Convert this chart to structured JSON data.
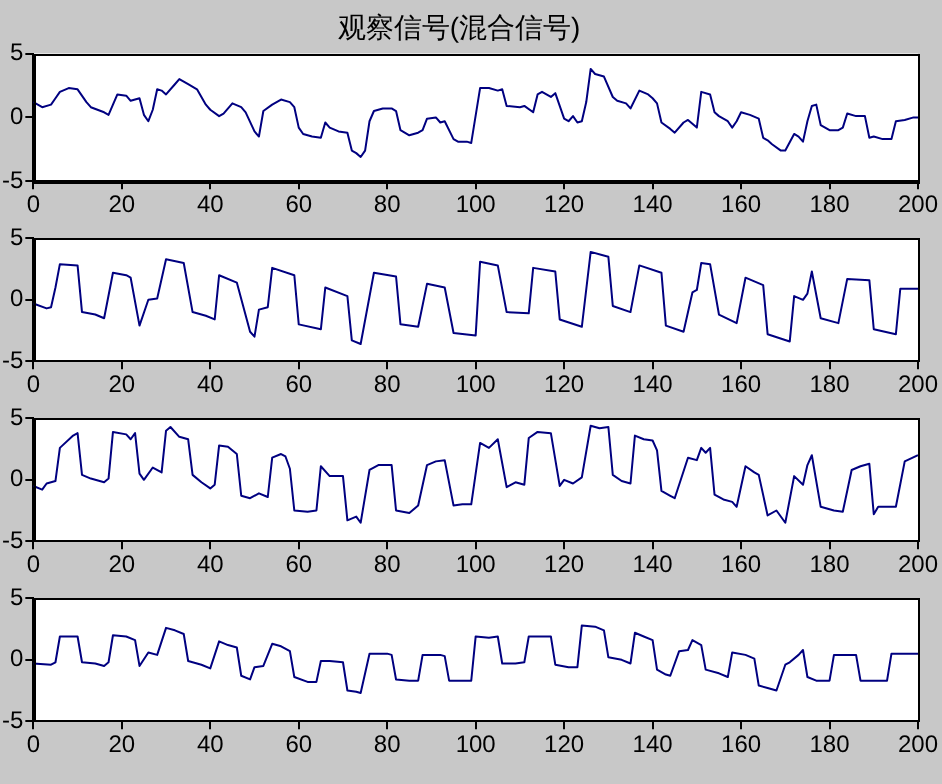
{
  "chart_data": [
    {
      "type": "line",
      "title": "观察信号(混合信号)",
      "color": "#000080",
      "xlim": [
        0,
        200
      ],
      "xticks": [
        0,
        20,
        40,
        60,
        80,
        100,
        120,
        140,
        160,
        180,
        200
      ],
      "ylim": [
        -5,
        5
      ],
      "yticks": [
        -5,
        0,
        5
      ],
      "grid": false,
      "x": [
        0,
        2,
        4,
        5,
        6,
        8,
        10,
        12,
        13,
        16,
        17,
        18,
        19,
        21,
        22,
        24,
        25,
        26,
        27,
        28,
        29,
        30,
        32,
        33,
        35,
        37,
        39,
        40,
        42,
        43,
        45,
        47,
        48,
        50,
        51,
        52,
        54,
        56,
        58,
        59,
        60,
        61,
        63,
        65,
        66,
        67,
        69,
        71,
        72,
        73,
        74,
        75,
        76,
        77,
        79,
        81,
        82,
        83,
        85,
        87,
        88,
        89,
        91,
        92,
        93,
        95,
        96,
        98,
        99,
        101,
        103,
        105,
        106,
        107,
        110,
        111,
        113,
        114,
        115,
        116,
        117,
        118,
        120,
        121,
        122,
        123,
        124,
        125,
        126,
        127,
        129,
        131,
        132,
        134,
        135,
        137,
        139,
        140,
        141,
        142,
        144,
        145,
        147,
        148,
        150,
        151,
        153,
        154,
        155,
        157,
        158,
        159,
        160,
        162,
        164,
        165,
        166,
        167,
        169,
        170,
        172,
        173,
        174,
        175,
        176,
        177,
        178,
        180,
        182,
        183,
        184,
        186,
        188,
        189,
        190,
        192,
        194,
        195,
        197,
        199,
        200
      ],
      "values": [
        1.2,
        0.8,
        1.0,
        1.5,
        2.0,
        2.3,
        2.2,
        1.2,
        0.8,
        0.4,
        0.2,
        1.0,
        1.8,
        1.7,
        1.3,
        1.5,
        0.2,
        -0.3,
        0.6,
        2.2,
        2.1,
        1.8,
        2.6,
        3.0,
        2.6,
        2.2,
        1.0,
        0.6,
        0.1,
        0.3,
        1.1,
        0.8,
        0.4,
        -1.1,
        -1.5,
        0.5,
        1.0,
        1.4,
        1.2,
        0.8,
        -0.8,
        -1.3,
        -1.5,
        -1.6,
        -0.4,
        -0.8,
        -1.1,
        -1.2,
        -2.6,
        -2.8,
        -3.1,
        -2.6,
        -0.3,
        0.5,
        0.7,
        0.7,
        0.5,
        -1.0,
        -1.4,
        -1.2,
        -1.0,
        -0.1,
        0.0,
        -0.4,
        -0.3,
        -1.7,
        -1.9,
        -1.9,
        -2.0,
        2.3,
        2.3,
        2.1,
        2.2,
        0.9,
        0.8,
        0.9,
        0.4,
        1.8,
        2.0,
        1.8,
        1.6,
        1.9,
        -0.1,
        -0.3,
        0.1,
        -0.4,
        -0.3,
        1.2,
        3.8,
        3.4,
        3.2,
        1.6,
        1.3,
        1.1,
        0.7,
        2.1,
        1.8,
        1.5,
        1.1,
        -0.4,
        -0.9,
        -1.2,
        -0.4,
        -0.2,
        -0.8,
        2.0,
        1.8,
        0.4,
        0.1,
        -0.3,
        -0.8,
        -0.3,
        0.4,
        0.2,
        -0.1,
        -1.6,
        -1.8,
        -2.1,
        -2.6,
        -2.6,
        -1.3,
        -1.5,
        -1.9,
        -0.3,
        0.9,
        1.0,
        -0.6,
        -1.0,
        -1.0,
        -0.8,
        0.3,
        0.1,
        0.1,
        -1.6,
        -1.5,
        -1.7,
        -1.7,
        -0.3,
        -0.2,
        0.0,
        0.0
      ]
    },
    {
      "type": "line",
      "color": "#000080",
      "xlim": [
        0,
        200
      ],
      "xticks": [
        0,
        20,
        40,
        60,
        80,
        100,
        120,
        140,
        160,
        180,
        200
      ],
      "ylim": [
        -5,
        5
      ],
      "yticks": [
        -5,
        0,
        5
      ],
      "grid": false,
      "x": [
        0,
        3,
        4,
        5,
        6,
        10,
        11,
        14,
        16,
        18,
        21,
        22,
        24,
        26,
        28,
        30,
        34,
        36,
        39,
        41,
        42,
        46,
        49,
        50,
        51,
        53,
        54,
        59,
        60,
        65,
        66,
        71,
        72,
        74,
        77,
        82,
        83,
        87,
        89,
        93,
        95,
        100,
        101,
        105,
        107,
        112,
        113,
        118,
        119,
        124,
        126,
        130,
        131,
        135,
        137,
        142,
        143,
        147,
        149,
        150,
        151,
        153,
        155,
        159,
        161,
        165,
        166,
        171,
        172,
        174,
        175,
        176,
        178,
        182,
        184,
        189,
        190,
        195,
        196,
        200
      ],
      "values": [
        -0.3,
        -0.7,
        -0.6,
        1.0,
        2.9,
        2.8,
        -1.0,
        -1.2,
        -1.5,
        2.2,
        2.0,
        1.8,
        -2.1,
        0.0,
        0.1,
        3.3,
        3.0,
        -1.0,
        -1.3,
        -1.6,
        2.0,
        1.4,
        -2.6,
        -3.0,
        -0.8,
        -0.6,
        2.6,
        2.0,
        -2.0,
        -2.4,
        1.0,
        0.3,
        -3.3,
        -3.6,
        2.2,
        1.9,
        -2.0,
        -2.2,
        1.3,
        1.0,
        -2.7,
        -2.9,
        3.1,
        2.8,
        -1.0,
        -1.1,
        2.6,
        2.3,
        -1.6,
        -2.2,
        3.9,
        3.5,
        -0.5,
        -1.0,
        2.8,
        2.2,
        -2.1,
        -2.6,
        0.6,
        0.8,
        3.0,
        2.9,
        -1.2,
        -1.9,
        1.8,
        1.2,
        -2.8,
        -3.4,
        0.3,
        0.0,
        0.5,
        2.3,
        -1.5,
        -1.9,
        1.7,
        1.6,
        -2.4,
        -2.8,
        0.9,
        0.9
      ]
    },
    {
      "type": "line",
      "color": "#000080",
      "xlim": [
        0,
        200
      ],
      "xticks": [
        0,
        20,
        40,
        60,
        80,
        100,
        120,
        140,
        160,
        180,
        200
      ],
      "ylim": [
        -5,
        5
      ],
      "yticks": [
        -5,
        0,
        5
      ],
      "grid": false,
      "x": [
        0,
        2,
        3,
        5,
        6,
        9,
        10,
        11,
        13,
        16,
        17,
        18,
        21,
        22,
        23,
        24,
        25,
        27,
        29,
        30,
        31,
        33,
        35,
        36,
        38,
        40,
        41,
        42,
        44,
        46,
        47,
        49,
        51,
        53,
        54,
        56,
        57,
        58,
        59,
        62,
        64,
        65,
        67,
        70,
        71,
        73,
        74,
        76,
        78,
        81,
        82,
        85,
        87,
        89,
        91,
        93,
        95,
        97,
        99,
        101,
        103,
        105,
        107,
        109,
        111,
        112,
        114,
        117,
        119,
        120,
        122,
        124,
        126,
        128,
        130,
        131,
        133,
        135,
        136,
        138,
        140,
        141,
        142,
        144,
        145,
        148,
        150,
        151,
        152,
        153,
        154,
        156,
        158,
        159,
        161,
        163,
        164,
        166,
        168,
        170,
        172,
        174,
        175,
        176,
        178,
        181,
        183,
        185,
        187,
        189,
        190,
        191,
        195,
        197,
        200
      ],
      "values": [
        -0.5,
        -0.8,
        -0.3,
        -0.1,
        2.6,
        3.6,
        3.8,
        0.4,
        0.1,
        -0.2,
        0.1,
        3.9,
        3.7,
        3.3,
        3.8,
        0.5,
        0.0,
        1.0,
        0.6,
        4.0,
        4.3,
        3.5,
        3.3,
        0.4,
        -0.2,
        -0.7,
        -0.4,
        2.8,
        2.7,
        2.1,
        -1.3,
        -1.5,
        -1.1,
        -1.4,
        1.8,
        2.1,
        1.9,
        0.9,
        -2.5,
        -2.6,
        -2.5,
        1.1,
        0.3,
        0.3,
        -3.3,
        -3.0,
        -3.5,
        0.8,
        1.2,
        1.2,
        -2.5,
        -2.7,
        -2.1,
        1.2,
        1.5,
        1.6,
        -2.1,
        -2.0,
        -2.0,
        3.0,
        2.6,
        3.3,
        -0.6,
        -0.2,
        -0.4,
        3.4,
        3.9,
        3.8,
        -0.5,
        0.0,
        -0.3,
        0.2,
        4.4,
        4.2,
        4.3,
        0.4,
        -0.1,
        -0.3,
        3.6,
        3.3,
        3.2,
        2.4,
        -0.9,
        -1.3,
        -1.5,
        1.8,
        1.6,
        2.6,
        2.2,
        2.6,
        -1.2,
        -1.6,
        -1.8,
        -2.2,
        1.1,
        0.6,
        0.4,
        -2.9,
        -2.5,
        -3.5,
        0.3,
        -0.4,
        1.2,
        2.0,
        -2.2,
        -2.5,
        -2.6,
        0.8,
        1.1,
        1.3,
        -2.8,
        -2.2,
        -2.2,
        1.5,
        2.0
      ]
    },
    {
      "type": "line",
      "color": "#000080",
      "xlim": [
        0,
        200
      ],
      "xticks": [
        0,
        20,
        40,
        60,
        80,
        100,
        120,
        140,
        160,
        180,
        200
      ],
      "ylim": [
        -5,
        5
      ],
      "yticks": [
        -5,
        0,
        5
      ],
      "grid": false,
      "x": [
        0,
        4,
        5,
        6,
        10,
        11,
        14,
        16,
        17,
        18,
        21,
        23,
        24,
        26,
        28,
        30,
        32,
        34,
        35,
        38,
        40,
        42,
        44,
        46,
        47,
        49,
        50,
        52,
        54,
        56,
        58,
        59,
        62,
        64,
        65,
        67,
        70,
        71,
        73,
        74,
        76,
        80,
        81,
        82,
        85,
        87,
        88,
        92,
        93,
        94,
        98,
        99,
        100,
        103,
        105,
        106,
        109,
        111,
        112,
        115,
        117,
        118,
        121,
        123,
        124,
        127,
        129,
        130,
        133,
        135,
        136,
        138,
        140,
        141,
        143,
        144,
        146,
        148,
        149,
        151,
        152,
        155,
        157,
        158,
        161,
        163,
        164,
        166,
        168,
        170,
        171,
        173,
        174,
        175,
        177,
        180,
        181,
        184,
        186,
        187,
        191,
        193,
        194,
        200
      ],
      "values": [
        -0.3,
        -0.4,
        -0.2,
        1.9,
        1.9,
        -0.2,
        -0.3,
        -0.5,
        -0.2,
        2.0,
        1.9,
        1.6,
        -0.5,
        0.6,
        0.4,
        2.6,
        2.4,
        2.1,
        -0.1,
        -0.4,
        -0.7,
        1.5,
        1.2,
        1.0,
        -1.3,
        -1.6,
        -0.6,
        -0.5,
        1.3,
        1.1,
        0.7,
        -1.4,
        -1.8,
        -1.8,
        -0.1,
        -0.1,
        -0.2,
        -2.5,
        -2.6,
        -2.7,
        0.5,
        0.5,
        0.4,
        -1.6,
        -1.7,
        -1.7,
        0.4,
        0.4,
        0.3,
        -1.7,
        -1.7,
        -1.7,
        1.9,
        1.8,
        1.9,
        -0.3,
        -0.3,
        -0.2,
        1.9,
        1.9,
        1.9,
        -0.4,
        -0.6,
        -0.6,
        2.8,
        2.7,
        2.4,
        0.2,
        0.0,
        -0.3,
        2.2,
        1.9,
        1.6,
        -0.8,
        -1.2,
        -1.3,
        0.7,
        0.8,
        1.6,
        1.2,
        -0.8,
        -1.1,
        -1.4,
        0.6,
        0.4,
        0.1,
        -2.1,
        -2.3,
        -2.5,
        -0.4,
        -0.2,
        0.4,
        0.8,
        -1.4,
        -1.7,
        -1.7,
        0.4,
        0.4,
        0.4,
        -1.7,
        -1.7,
        -1.7,
        0.5,
        0.5
      ]
    }
  ]
}
